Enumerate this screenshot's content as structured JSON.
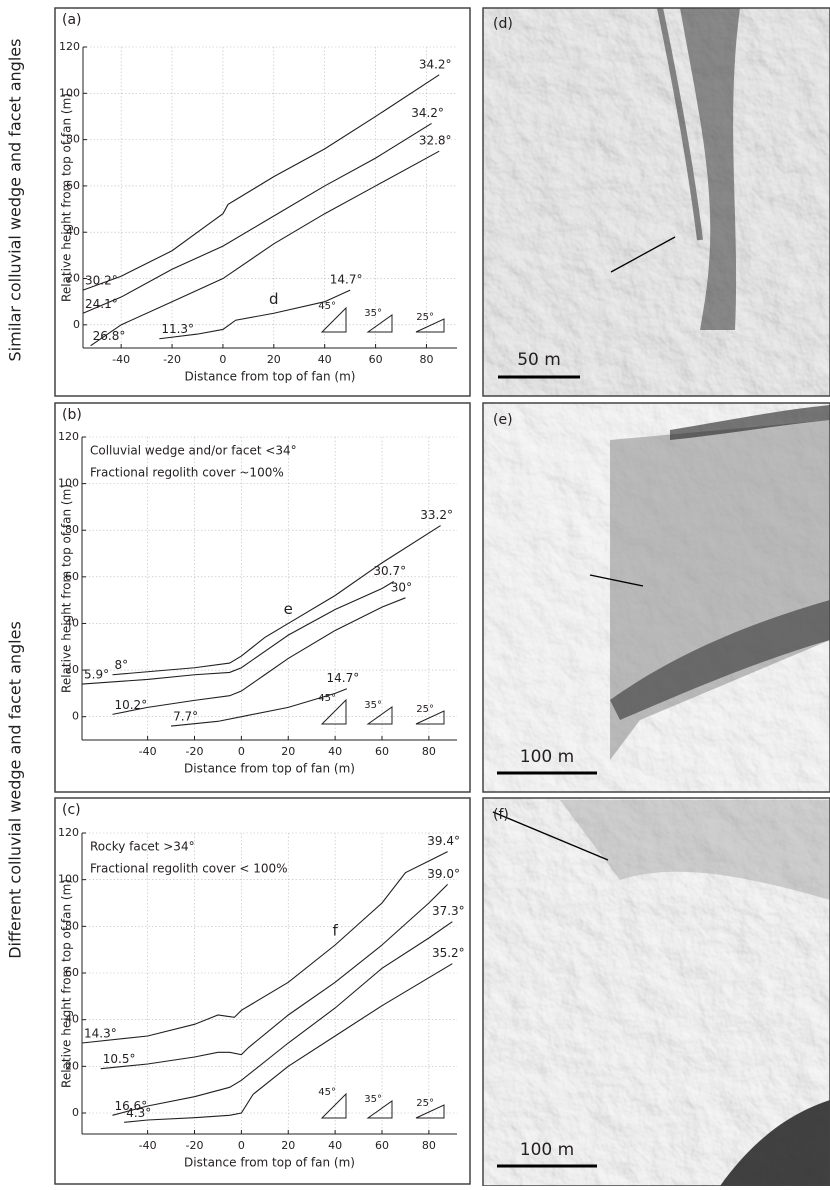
{
  "row_labels": [
    "Similar colluvial wedge and facet angles",
    "Different  colluvial wedge and facet angles"
  ],
  "images": [
    {
      "label": "(d)",
      "scale_bar": "50 m"
    },
    {
      "label": "(e)",
      "scale_bar": "100 m"
    },
    {
      "label": "(f)",
      "scale_bar": "100 m"
    }
  ],
  "chart_data": [
    {
      "type": "line",
      "panel_label": "(a)",
      "xlabel": "Distance from top of fan (m)",
      "ylabel": "Relative height from top of fan (m)",
      "xlim": [
        -55,
        92
      ],
      "ylim": [
        -10,
        120
      ],
      "xticks": [
        -40,
        -20,
        0,
        20,
        40,
        60,
        80
      ],
      "yticks": [
        0,
        20,
        40,
        60,
        80,
        100,
        120
      ],
      "grid": true,
      "color": "#231f20",
      "annotations": [],
      "slope_guides": [
        "45°",
        "35°",
        "25°"
      ],
      "series": [
        {
          "x": [
            -55,
            -40,
            -20,
            -5,
            0,
            2,
            20,
            40,
            60,
            85
          ],
          "values": [
            15,
            21,
            32,
            44,
            48,
            52,
            64,
            76,
            90,
            108
          ],
          "start_label": "30.2°",
          "end_label": "34.2°"
        },
        {
          "x": [
            -55,
            -40,
            -20,
            0,
            20,
            40,
            60,
            82
          ],
          "values": [
            5,
            12,
            24,
            34,
            47,
            60,
            72,
            87
          ],
          "start_label": "24.1°",
          "end_label": "34.2°"
        },
        {
          "x": [
            -52,
            -40,
            -20,
            0,
            20,
            40,
            60,
            85
          ],
          "values": [
            -9,
            0,
            10,
            20,
            35,
            48,
            60,
            75
          ],
          "start_label": "26.8°",
          "end_label": "32.8°"
        },
        {
          "x": [
            -25,
            -10,
            0,
            5,
            20,
            40,
            50
          ],
          "values": [
            -6,
            -4,
            -2,
            2,
            5,
            10,
            15
          ],
          "start_label": "11.3°",
          "end_label": "14.7°",
          "tag": "d"
        }
      ]
    },
    {
      "type": "line",
      "panel_label": "(b)",
      "xlabel": "Distance from top of fan (m)",
      "ylabel": "Relative height from top of fan (m)",
      "xlim": [
        -68,
        92
      ],
      "ylim": [
        -10,
        120
      ],
      "xticks": [
        -40,
        -20,
        0,
        20,
        40,
        60,
        80
      ],
      "yticks": [
        0,
        20,
        40,
        60,
        80,
        100,
        120
      ],
      "grid": true,
      "color": "#231f20",
      "annotations": [
        "Colluvial wedge and/or facet <34°",
        "Fractional regolith cover ~100%"
      ],
      "slope_guides": [
        "45°",
        "35°",
        "25°"
      ],
      "series": [
        {
          "x": [
            -55,
            -20,
            -5,
            0,
            10,
            20,
            40,
            60,
            85
          ],
          "values": [
            18,
            21,
            23,
            26,
            34,
            40,
            52,
            66,
            82
          ],
          "start_label": "8°",
          "end_label": "33.2°",
          "tag": "e"
        },
        {
          "x": [
            -68,
            -40,
            -20,
            -5,
            0,
            10,
            20,
            40,
            60,
            65
          ],
          "values": [
            14,
            16,
            18,
            19,
            21,
            28,
            35,
            46,
            55,
            58
          ],
          "start_label": "5.9°",
          "end_label": "30.7°"
        },
        {
          "x": [
            -55,
            -40,
            -20,
            -5,
            0,
            10,
            20,
            40,
            60,
            70
          ],
          "values": [
            1,
            4,
            7,
            9,
            11,
            18,
            25,
            37,
            47,
            51
          ],
          "start_label": "10.2°",
          "end_label": "30°"
        },
        {
          "x": [
            -30,
            -20,
            -10,
            0,
            20,
            40,
            45
          ],
          "values": [
            -4,
            -3,
            -2,
            0,
            4,
            10,
            12
          ],
          "start_label": "7.7°",
          "end_label": "14.7°"
        }
      ]
    },
    {
      "type": "line",
      "panel_label": "(c)",
      "xlabel": "Distance from top of fan (m)",
      "ylabel": "Relative height from top of fan (m)",
      "xlim": [
        -68,
        92
      ],
      "ylim": [
        -9,
        120
      ],
      "xticks": [
        -40,
        -20,
        0,
        20,
        40,
        60,
        80
      ],
      "yticks": [
        0,
        20,
        40,
        60,
        80,
        100,
        120
      ],
      "grid": true,
      "color": "#231f20",
      "annotations": [
        "Rocky facet >34°",
        "Fractional regolith cover < 100%"
      ],
      "slope_guides": [
        "45°",
        "35°",
        "25°"
      ],
      "series": [
        {
          "x": [
            -68,
            -40,
            -20,
            -10,
            -3,
            0,
            20,
            40,
            60,
            70,
            80,
            88
          ],
          "values": [
            30,
            33,
            38,
            42,
            41,
            44,
            56,
            72,
            90,
            103,
            108,
            112
          ],
          "start_label": "14.3°",
          "end_label": "39.4°",
          "tag": "f"
        },
        {
          "x": [
            -60,
            -40,
            -20,
            -10,
            -5,
            0,
            3,
            20,
            40,
            60,
            80,
            88
          ],
          "values": [
            19,
            21,
            24,
            26,
            26,
            25,
            28,
            42,
            56,
            72,
            90,
            98
          ],
          "start_label": "10.5°",
          "end_label": "39.0°"
        },
        {
          "x": [
            -55,
            -40,
            -20,
            -5,
            0,
            20,
            40,
            60,
            80,
            90
          ],
          "values": [
            -1,
            3,
            7,
            11,
            14,
            30,
            45,
            62,
            75,
            82
          ],
          "start_label": "16.6°",
          "end_label": "37.3°"
        },
        {
          "x": [
            -50,
            -40,
            -20,
            -5,
            0,
            5,
            20,
            40,
            60,
            80,
            90
          ],
          "values": [
            -4,
            -3,
            -2,
            -1,
            0,
            8,
            20,
            33,
            46,
            58,
            64
          ],
          "start_label": "4.3°",
          "end_label": "35.2°"
        }
      ]
    }
  ]
}
